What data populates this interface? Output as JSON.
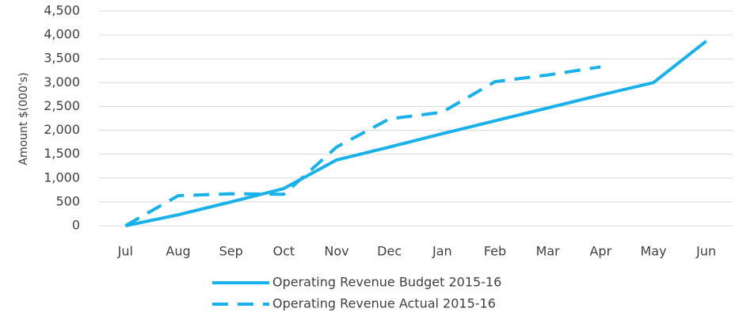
{
  "chart_data": {
    "type": "line",
    "y_label": "Amount $(000's)",
    "categories": [
      "Jul",
      "Aug",
      "Sep",
      "Oct",
      "Nov",
      "Dec",
      "Jan",
      "Feb",
      "Mar",
      "Apr",
      "May",
      "Jun"
    ],
    "series": [
      {
        "name": "Operating Revenue Budget 2015-16",
        "color": "#1ab0ea",
        "dash": false,
        "values": [
          0,
          230,
          500,
          780,
          1380,
          1650,
          1930,
          2200,
          2470,
          2740,
          3000,
          3870
        ]
      },
      {
        "name": "Operating Revenue Actual 2015-16",
        "color": "#1ab0ea",
        "dash": true,
        "values": [
          0,
          630,
          670,
          660,
          1650,
          2240,
          2380,
          3020,
          3160,
          3330,
          null,
          null
        ]
      }
    ],
    "ylim": [
      0,
      4500
    ],
    "yticks": [
      0,
      500,
      {
        "value": 1000,
        "label": "1,000"
      },
      {
        "value": 1500,
        "label": "1,500"
      },
      {
        "value": 2000,
        "label": "2,000"
      },
      {
        "value": 2500,
        "label": "2,500"
      },
      {
        "value": 3000,
        "label": "3,000"
      },
      {
        "value": 3500,
        "label": "3,500"
      },
      {
        "value": 4000,
        "label": "4,000"
      },
      {
        "value": 4500,
        "label": "4,500"
      }
    ],
    "grid": true,
    "legend": "bottom"
  }
}
